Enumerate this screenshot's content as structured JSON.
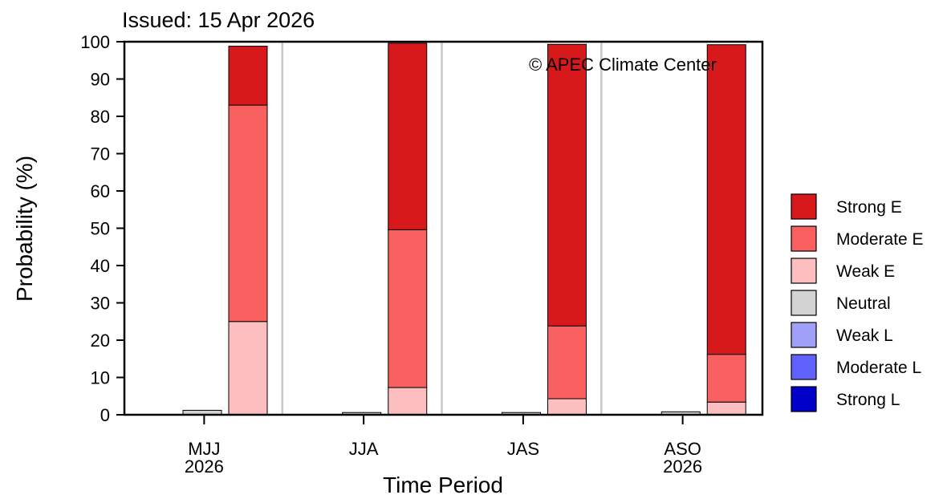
{
  "issued": "Issued: 15 Apr 2026",
  "copyright": "© APEC Climate Center",
  "colors": {
    "strong_e": "#d7191c",
    "moderate_e": "#f96161",
    "weak_e": "#fdbebf",
    "neutral": "#d3d3d3",
    "weak_l": "#a0a0f8",
    "moderate_l": "#6060fc",
    "strong_l": "#0000c8"
  },
  "chart_data": {
    "type": "bar",
    "stacked": true,
    "xlabel": "Time Period",
    "ylabel": "Probability (%)",
    "ylim": [
      0,
      100
    ],
    "yticks": [
      0,
      10,
      20,
      30,
      40,
      50,
      60,
      70,
      80,
      90,
      100
    ],
    "grid": false,
    "legend_position": "right",
    "categories": [
      {
        "label": "MJJ",
        "sublabel": "2026"
      },
      {
        "label": "JJA",
        "sublabel": ""
      },
      {
        "label": "JAS",
        "sublabel": ""
      },
      {
        "label": "ASO",
        "sublabel": "2026"
      }
    ],
    "neutral_values": [
      1.2,
      0.6,
      0.6,
      0.8
    ],
    "series": [
      {
        "name": "Strong E",
        "key": "strong_e",
        "values": [
          15.8,
          50.0,
          75.5,
          83.0
        ]
      },
      {
        "name": "Moderate E",
        "key": "moderate_e",
        "values": [
          58.0,
          42.3,
          19.5,
          12.8
        ]
      },
      {
        "name": "Weak E",
        "key": "weak_e",
        "values": [
          25.0,
          7.3,
          4.3,
          3.4
        ]
      },
      {
        "name": "Neutral",
        "key": "neutral",
        "values": [
          1.2,
          0.6,
          0.6,
          0.8
        ]
      },
      {
        "name": "Weak L",
        "key": "weak_l",
        "values": [
          0,
          0,
          0,
          0
        ]
      },
      {
        "name": "Moderate L",
        "key": "moderate_l",
        "values": [
          0,
          0,
          0,
          0
        ]
      },
      {
        "name": "Strong L",
        "key": "strong_l",
        "values": [
          0,
          0,
          0,
          0
        ]
      }
    ]
  }
}
